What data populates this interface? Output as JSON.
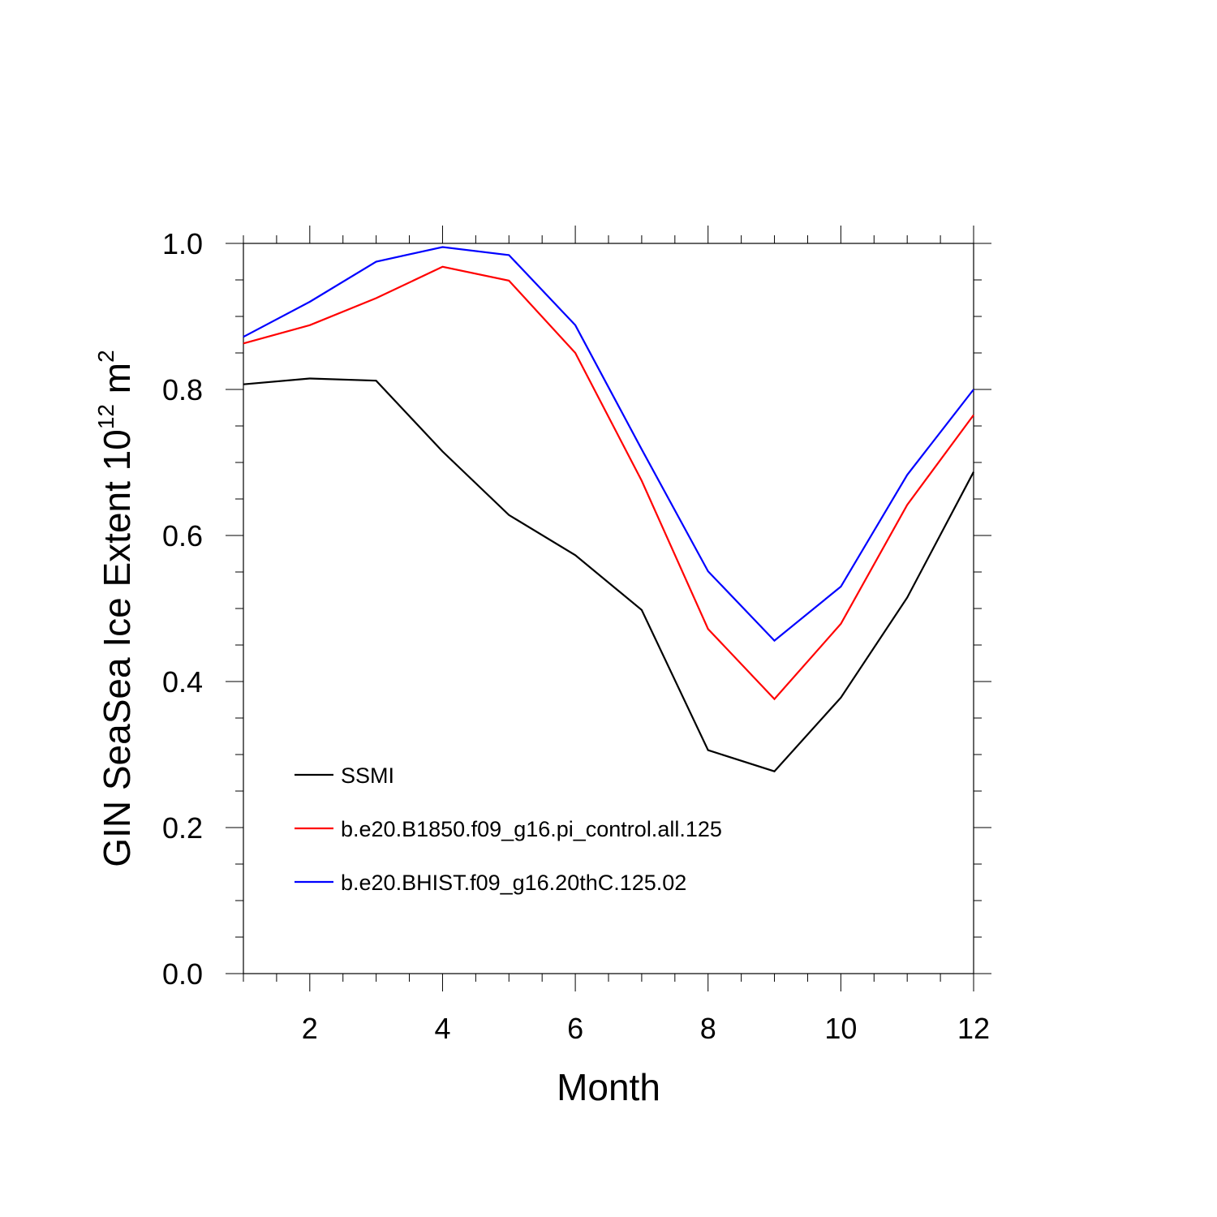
{
  "chart_data": {
    "type": "line",
    "title": "",
    "xlabel": "Month",
    "ylabel": {
      "main": "GIN SeaSea Ice Extent 10",
      "sup1": "12",
      "unit": " m",
      "sup2": "2"
    },
    "xlim": [
      1,
      12
    ],
    "ylim": [
      0.0,
      1.0
    ],
    "xticks": [
      2,
      4,
      6,
      8,
      10,
      12
    ],
    "xtick_labels": [
      "2",
      "4",
      "6",
      "8",
      "10",
      "12"
    ],
    "yticks": [
      0.0,
      0.2,
      0.4,
      0.6,
      0.8,
      1.0
    ],
    "ytick_labels": [
      "0.0",
      "0.2",
      "0.4",
      "0.6",
      "0.8",
      "1.0"
    ],
    "grid": false,
    "legend_position": "bottom-left",
    "x": [
      1,
      2,
      3,
      4,
      5,
      6,
      7,
      8,
      9,
      10,
      11,
      12
    ],
    "series": [
      {
        "name": "SSMI",
        "color": "#000000",
        "values": [
          0.807,
          0.815,
          0.812,
          0.715,
          0.628,
          0.573,
          0.498,
          0.306,
          0.277,
          0.378,
          0.515,
          0.687
        ]
      },
      {
        "name": "b.e20.B1850.f09_g16.pi_control.all.125",
        "color": "#ff0000",
        "values": [
          0.863,
          0.888,
          0.925,
          0.968,
          0.949,
          0.85,
          0.675,
          0.472,
          0.376,
          0.479,
          0.642,
          0.765
        ]
      },
      {
        "name": "b.e20.BHIST.f09_g16.20thC.125.02",
        "color": "#0000ff",
        "values": [
          0.872,
          0.92,
          0.975,
          0.995,
          0.984,
          0.888,
          0.718,
          0.551,
          0.456,
          0.53,
          0.683,
          0.8
        ]
      }
    ]
  }
}
